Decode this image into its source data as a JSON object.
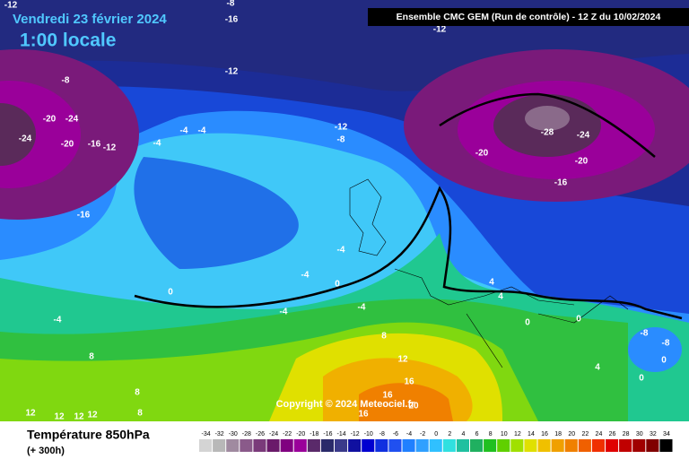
{
  "header": {
    "date": "Vendredi 23 février 2024",
    "time": "1:00 locale",
    "run": "Ensemble CMC GEM  (Run de contrôle)  -  12 Z du 10/02/2024"
  },
  "copyright": "Copyright © 2024 Meteociel.fr",
  "footer": {
    "title": "Température 850hPa",
    "lead": "(+ 300h)"
  },
  "contour_labels": [
    -12,
    -8,
    -16,
    -12,
    -8,
    -12,
    -20,
    -24,
    -24,
    -20,
    -16,
    -12,
    -4,
    -4,
    -4,
    -12,
    -8,
    -28,
    -24,
    -20,
    -20,
    -16,
    -16,
    -4,
    -4,
    0,
    0,
    -4,
    -4,
    4,
    4,
    0,
    8,
    -4,
    8,
    12,
    8,
    8,
    16,
    16,
    16,
    20,
    12,
    12,
    12,
    12,
    -8,
    -8,
    0,
    4,
    0,
    0
  ],
  "legend": {
    "values": [
      -34,
      -32,
      -30,
      -28,
      -26,
      -24,
      -22,
      -20,
      -18,
      -16,
      -14,
      -12,
      -10,
      -8,
      -6,
      -4,
      -2,
      0,
      2,
      4,
      6,
      8,
      10,
      12,
      14,
      16,
      18,
      20,
      22,
      24,
      26,
      28,
      30,
      32,
      34
    ],
    "colors": [
      "#d4d4d4",
      "#b8b8b8",
      "#a08aa0",
      "#8a5a8a",
      "#7a3a7a",
      "#6a1a6a",
      "#800080",
      "#9a009a",
      "#5a2a6a",
      "#2a2a6a",
      "#3a3a8a",
      "#1010a0",
      "#0000d0",
      "#1030e0",
      "#2050f0",
      "#2080ff",
      "#30a0ff",
      "#30c0ff",
      "#30e0e0",
      "#20c0a0",
      "#20b060",
      "#20c020",
      "#60d000",
      "#a0e000",
      "#e0e000",
      "#f0c000",
      "#f0a000",
      "#f08000",
      "#f06000",
      "#f03000",
      "#e00000",
      "#c00000",
      "#a00000",
      "#800000",
      "#000000"
    ]
  }
}
